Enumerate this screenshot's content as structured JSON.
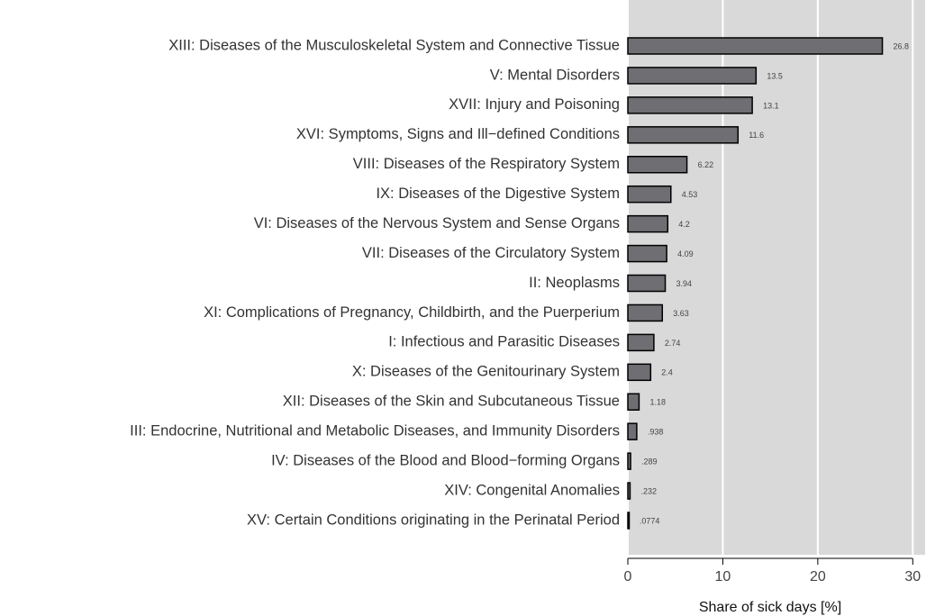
{
  "chart_data": {
    "type": "bar",
    "orientation": "horizontal",
    "categories": [
      "XIII: Diseases of the Musculoskeletal System and Connective Tissue",
      "V: Mental Disorders",
      "XVII: Injury and Poisoning",
      "XVI: Symptoms, Signs and Ill−defined Conditions",
      "VIII: Diseases of the Respiratory System",
      "IX: Diseases of the Digestive System",
      "VI: Diseases of the Nervous System and Sense Organs",
      "VII: Diseases of the Circulatory System",
      "II: Neoplasms",
      "XI: Complications of Pregnancy, Childbirth, and the Puerperium",
      "I: Infectious and Parasitic Diseases",
      "X: Diseases of the Genitourinary System",
      "XII: Diseases of the Skin and Subcutaneous Tissue",
      "III: Endocrine, Nutritional and Metabolic Diseases, and Immunity Disorders",
      "IV: Diseases of the Blood and Blood−forming Organs",
      "XIV: Congenital Anomalies",
      "XV: Certain Conditions originating in the Perinatal Period"
    ],
    "values": [
      26.8,
      13.5,
      13.1,
      11.6,
      6.22,
      4.53,
      4.2,
      4.09,
      3.94,
      3.63,
      2.74,
      2.4,
      1.18,
      0.938,
      0.289,
      0.232,
      0.0774
    ],
    "value_labels": [
      "26.8",
      "13.5",
      "13.1",
      "11.6",
      "6.22",
      "4.53",
      "4.2",
      "4.09",
      "3.94",
      "3.63",
      "2.74",
      "2.4",
      "1.18",
      ".938",
      ".289",
      ".232",
      ".0774"
    ],
    "color": "#6e6e73",
    "xlabel": "Share of sick days [%]",
    "xlim": [
      0,
      31.3
    ],
    "xticks": [
      0,
      10,
      20,
      30
    ],
    "grid": true
  }
}
